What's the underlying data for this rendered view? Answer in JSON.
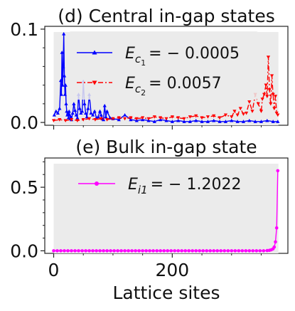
{
  "chart_data": [
    {
      "type": "line",
      "title": "(d) Central in-gap states",
      "xlabel": "",
      "ylabel": "",
      "xlim": [
        -15,
        395
      ],
      "ylim": [
        -0.003,
        0.103
      ],
      "y_ticks": [
        0.0,
        0.1
      ],
      "y_tick_labels": [
        "0.0",
        "0.1"
      ],
      "x_ticks": [
        0,
        200
      ],
      "x_tick_labels": [
        "",
        ""
      ],
      "shaded_region": [
        0,
        379
      ],
      "legend_position": "upper-center",
      "series": [
        {
          "name": "E_{c_1} = -0.0005",
          "name_parts": {
            "base": "E",
            "sub": "c",
            "subsub": "1",
            "rest": "= − 0.0005"
          },
          "color": "#0000ff",
          "marker": "triangle-up",
          "linestyle": "solid",
          "x": [
            1,
            4,
            7,
            10,
            12,
            13,
            14,
            15,
            16,
            17,
            18,
            19,
            20,
            21,
            22,
            23,
            24,
            25,
            26,
            27,
            28,
            29,
            30,
            32,
            34,
            36,
            38,
            40,
            42,
            44,
            46,
            48,
            50,
            52,
            54,
            56,
            58,
            60,
            63,
            66,
            69,
            72,
            75,
            78,
            80,
            82,
            84,
            86,
            88,
            90,
            95,
            100,
            110,
            120,
            130,
            140,
            150,
            160,
            170,
            180,
            190,
            200,
            210,
            220,
            230,
            240,
            250,
            260,
            270,
            280,
            290,
            300,
            310,
            320,
            330,
            340,
            350,
            360,
            370,
            378
          ],
          "y": [
            0.008,
            0.012,
            0.01,
            0.015,
            0.045,
            0.03,
            0.075,
            0.04,
            0.06,
            0.095,
            0.05,
            0.03,
            0.04,
            0.02,
            0.012,
            0.008,
            0.01,
            0.005,
            0.012,
            0.008,
            0.004,
            0.006,
            0.003,
            0.01,
            0.02,
            0.013,
            0.008,
            0.005,
            0.03,
            0.015,
            0.01,
            0.012,
            0.044,
            0.02,
            0.01,
            0.006,
            0.015,
            0.03,
            0.01,
            0.008,
            0.012,
            0.005,
            0.006,
            0.012,
            0.008,
            0.004,
            0.003,
            0.018,
            0.006,
            0.012,
            0.005,
            0.004,
            0.003,
            0.008,
            0.003,
            0.002,
            0.003,
            0.002,
            0.001,
            0.003,
            0.002,
            0.001,
            0.002,
            0.001,
            0.001,
            0.002,
            0.001,
            0.001,
            0.002,
            0.001,
            0.001,
            0.002,
            0.001,
            0.001,
            0.002,
            0.001,
            0.001,
            0.002,
            0.001,
            0.001
          ]
        },
        {
          "name": "E_{c_2} = 0.0057",
          "name_parts": {
            "base": "E",
            "sub": "c",
            "subsub": "2",
            "rest": "= 0.0057"
          },
          "color": "#ff0000",
          "marker": "triangle-down",
          "linestyle": "dashdot",
          "x": [
            0,
            10,
            20,
            30,
            40,
            50,
            60,
            70,
            80,
            90,
            100,
            110,
            120,
            130,
            140,
            150,
            160,
            170,
            180,
            190,
            200,
            210,
            220,
            230,
            240,
            250,
            260,
            270,
            280,
            290,
            300,
            305,
            310,
            315,
            320,
            325,
            330,
            335,
            340,
            345,
            350,
            352,
            355,
            358,
            360,
            362,
            364,
            366,
            368,
            370,
            372,
            374,
            376,
            378
          ],
          "y": [
            0.002,
            0.003,
            0.002,
            0.003,
            0.002,
            0.003,
            0.004,
            0.003,
            0.004,
            0.003,
            0.004,
            0.005,
            0.004,
            0.005,
            0.004,
            0.005,
            0.004,
            0.006,
            0.005,
            0.004,
            0.006,
            0.005,
            0.004,
            0.006,
            0.007,
            0.005,
            0.006,
            0.007,
            0.005,
            0.008,
            0.006,
            0.012,
            0.008,
            0.015,
            0.009,
            0.01,
            0.022,
            0.012,
            0.03,
            0.02,
            0.012,
            0.025,
            0.03,
            0.04,
            0.028,
            0.07,
            0.035,
            0.02,
            0.05,
            0.03,
            0.015,
            0.028,
            0.01,
            0.008
          ]
        }
      ]
    },
    {
      "type": "line",
      "title": "(e) Bulk in-gap state",
      "xlabel": "Lattice sites",
      "ylabel": "",
      "xlim": [
        -15,
        395
      ],
      "ylim": [
        -0.02,
        0.73
      ],
      "y_ticks": [
        0.0,
        0.5
      ],
      "y_tick_labels": [
        "0.0",
        "0.5"
      ],
      "x_ticks": [
        0,
        200
      ],
      "x_tick_labels": [
        "0",
        "200"
      ],
      "shaded_region": [
        0,
        379
      ],
      "legend_position": "upper-center",
      "series": [
        {
          "name": "E_{i1} = -1.2022",
          "name_parts": {
            "base": "E",
            "sub": "i1",
            "subsub": "",
            "rest": "= − 1.2022"
          },
          "color": "#ff00ff",
          "marker": "circle",
          "linestyle": "solid",
          "x": [
            0,
            6,
            12,
            18,
            24,
            30,
            36,
            42,
            48,
            54,
            60,
            66,
            72,
            78,
            84,
            90,
            96,
            102,
            108,
            114,
            120,
            126,
            132,
            138,
            144,
            150,
            156,
            162,
            168,
            174,
            180,
            186,
            192,
            198,
            204,
            210,
            216,
            222,
            228,
            234,
            240,
            246,
            252,
            258,
            264,
            270,
            276,
            282,
            288,
            294,
            300,
            306,
            312,
            318,
            324,
            330,
            336,
            342,
            348,
            354,
            360,
            364,
            367,
            370,
            372,
            374,
            376,
            378
          ],
          "y": [
            0,
            0,
            0,
            0,
            0,
            0,
            0,
            0,
            0,
            0,
            0,
            0,
            0,
            0,
            0,
            0,
            0,
            0,
            0,
            0,
            0,
            0,
            0,
            0,
            0,
            0,
            0,
            0,
            0,
            0,
            0,
            0,
            0,
            0,
            0,
            0,
            0,
            0,
            0,
            0,
            0,
            0,
            0,
            0,
            0,
            0,
            0,
            0,
            0,
            0,
            0,
            0,
            0,
            0,
            0,
            0,
            0,
            0,
            0,
            0,
            0.002,
            0.004,
            0.008,
            0.015,
            0.03,
            0.07,
            0.18,
            0.63
          ]
        }
      ]
    }
  ]
}
